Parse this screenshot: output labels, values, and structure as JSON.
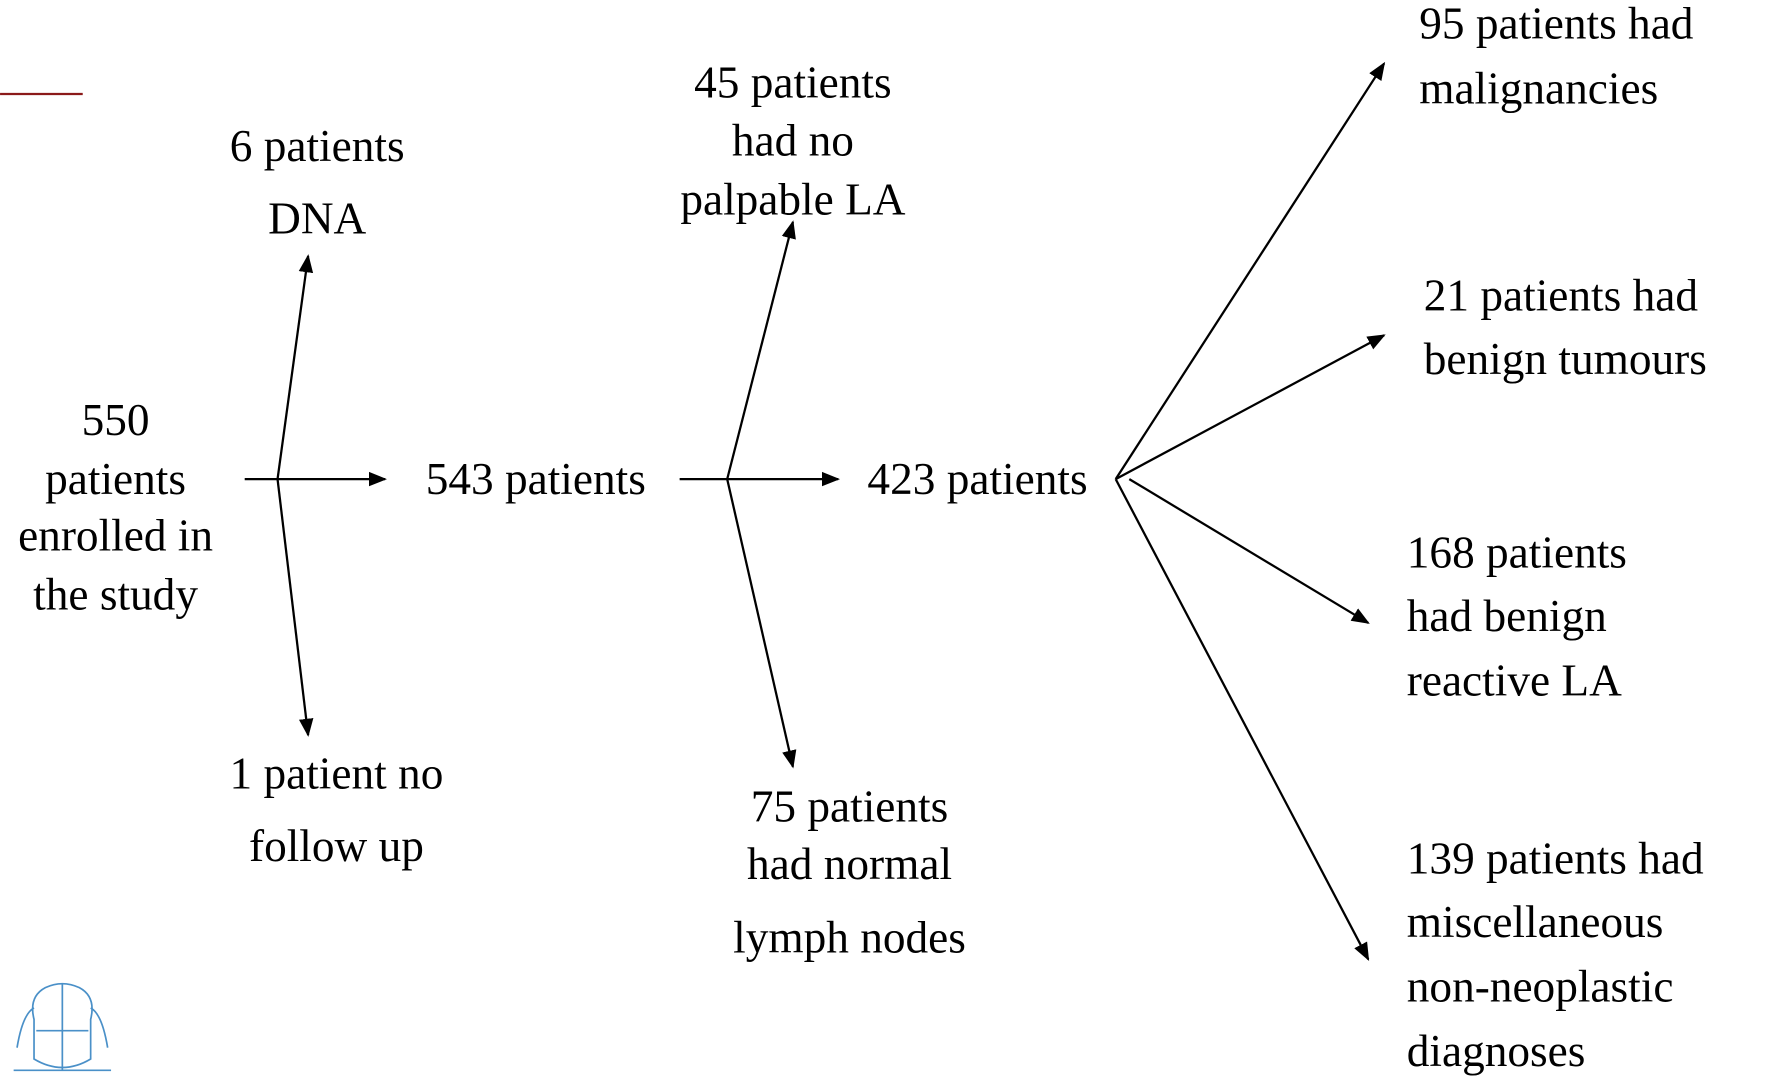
{
  "nodes": [
    {
      "lines": [
        "550",
        "patients",
        "enrolled in",
        "the study"
      ]
    },
    {
      "lines": [
        "6 patients",
        "DNA"
      ]
    },
    {
      "lines": [
        "1 patient no",
        "follow up"
      ]
    },
    {
      "lines": [
        "543 patients"
      ]
    },
    {
      "lines": [
        "45 patients",
        "had no",
        "palpable LA"
      ]
    },
    {
      "lines": [
        "75 patients",
        "had normal",
        "lymph nodes"
      ]
    },
    {
      "lines": [
        "423 patients"
      ]
    },
    {
      "lines": [
        "95 patients had",
        "malignancies"
      ]
    },
    {
      "lines": [
        "21 patients had",
        "benign tumours"
      ]
    },
    {
      "lines": [
        "168 patients",
        "had benign",
        "reactive LA"
      ]
    },
    {
      "lines": [
        "139 patients had",
        "miscellaneous",
        "non-neoplastic",
        "diagnoses"
      ]
    }
  ]
}
